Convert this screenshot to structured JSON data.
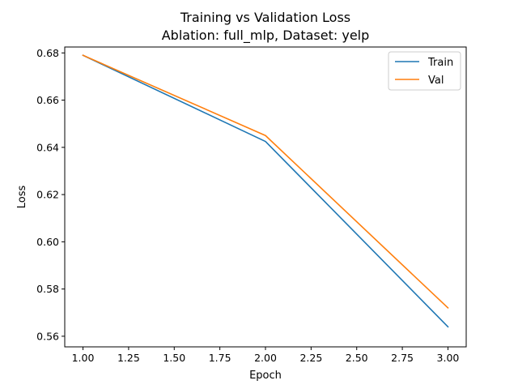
{
  "chart_data": {
    "type": "line",
    "title": "Training vs Validation Loss",
    "subtitle": "Ablation: full_mlp, Dataset: yelp",
    "xlabel": "Epoch",
    "ylabel": "Loss",
    "x": [
      1.0,
      2.0,
      3.0
    ],
    "xlim": [
      0.9,
      3.1
    ],
    "ylim": [
      0.5555,
      0.6825
    ],
    "xticks": [
      1.0,
      1.25,
      1.5,
      1.75,
      2.0,
      2.25,
      2.5,
      2.75,
      3.0
    ],
    "xtick_labels": [
      "1.00",
      "1.25",
      "1.50",
      "1.75",
      "2.00",
      "2.25",
      "2.50",
      "2.75",
      "3.00"
    ],
    "yticks": [
      0.56,
      0.58,
      0.6,
      0.62,
      0.64,
      0.66,
      0.68
    ],
    "ytick_labels": [
      "0.56",
      "0.58",
      "0.60",
      "0.62",
      "0.64",
      "0.66",
      "0.68"
    ],
    "grid": false,
    "legend_position": "top-right",
    "series": [
      {
        "name": "Train",
        "color": "#1f77b4",
        "values": [
          0.679,
          0.6425,
          0.564
        ]
      },
      {
        "name": "Val",
        "color": "#ff7f0e",
        "values": [
          0.679,
          0.645,
          0.572
        ]
      }
    ]
  }
}
